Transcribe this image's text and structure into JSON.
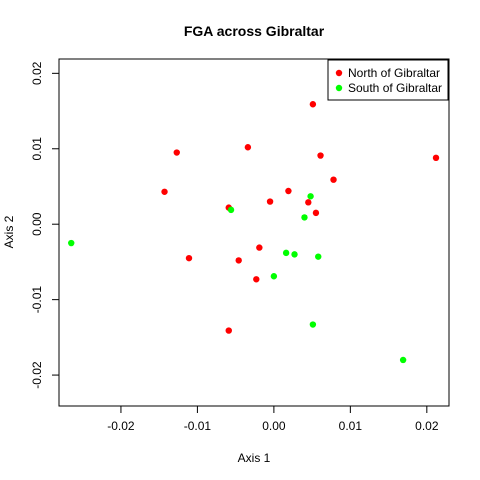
{
  "chart_data": {
    "type": "scatter",
    "title": "FGA across Gibraltar",
    "xlabel": "Axis 1",
    "ylabel": "Axis 2",
    "xlim": [
      -0.0281,
      0.0229
    ],
    "ylim": [
      -0.0241,
      0.0219
    ],
    "x_ticks": [
      -0.02,
      -0.01,
      0.0,
      0.01,
      0.02
    ],
    "x_tick_labels": [
      "-0.02",
      "-0.01",
      "0.00",
      "0.01",
      "0.02"
    ],
    "y_ticks": [
      -0.02,
      -0.01,
      0.0,
      0.01,
      0.02
    ],
    "y_tick_labels": [
      "-0.02",
      "-0.01",
      "0.00",
      "0.01",
      "0.02"
    ],
    "grid": false,
    "legend_position": "top-right",
    "series": [
      {
        "name": "North of Gibraltar",
        "color": "#ff0000",
        "points": [
          {
            "x": 0.0051,
            "y": 0.0159
          },
          {
            "x": 0.0061,
            "y": 0.0091
          },
          {
            "x": 0.0212,
            "y": 0.0088
          },
          {
            "x": -0.0034,
            "y": 0.0102
          },
          {
            "x": -0.0127,
            "y": 0.0095
          },
          {
            "x": -0.0143,
            "y": 0.0043
          },
          {
            "x": 0.0078,
            "y": 0.0059
          },
          {
            "x": 0.0019,
            "y": 0.0044
          },
          {
            "x": 0.0045,
            "y": 0.0029
          },
          {
            "x": 0.0055,
            "y": 0.0015
          },
          {
            "x": -0.0005,
            "y": 0.003
          },
          {
            "x": -0.0059,
            "y": 0.0022
          },
          {
            "x": -0.0019,
            "y": -0.0031
          },
          {
            "x": -0.0111,
            "y": -0.0045
          },
          {
            "x": -0.0046,
            "y": -0.0048
          },
          {
            "x": -0.0023,
            "y": -0.0073
          },
          {
            "x": -0.0059,
            "y": -0.0141
          }
        ]
      },
      {
        "name": "South of Gibraltar",
        "color": "#00ff00",
        "points": [
          {
            "x": 0.0048,
            "y": 0.0037
          },
          {
            "x": 0.004,
            "y": 0.0009
          },
          {
            "x": -0.0056,
            "y": 0.0019
          },
          {
            "x": -0.0265,
            "y": -0.0025
          },
          {
            "x": 0.0016,
            "y": -0.0038
          },
          {
            "x": 0.0027,
            "y": -0.004
          },
          {
            "x": 0.0058,
            "y": -0.0043
          },
          {
            "x": 0.0,
            "y": -0.0069
          },
          {
            "x": 0.0051,
            "y": -0.0133
          },
          {
            "x": 0.0169,
            "y": -0.018
          }
        ]
      }
    ]
  }
}
